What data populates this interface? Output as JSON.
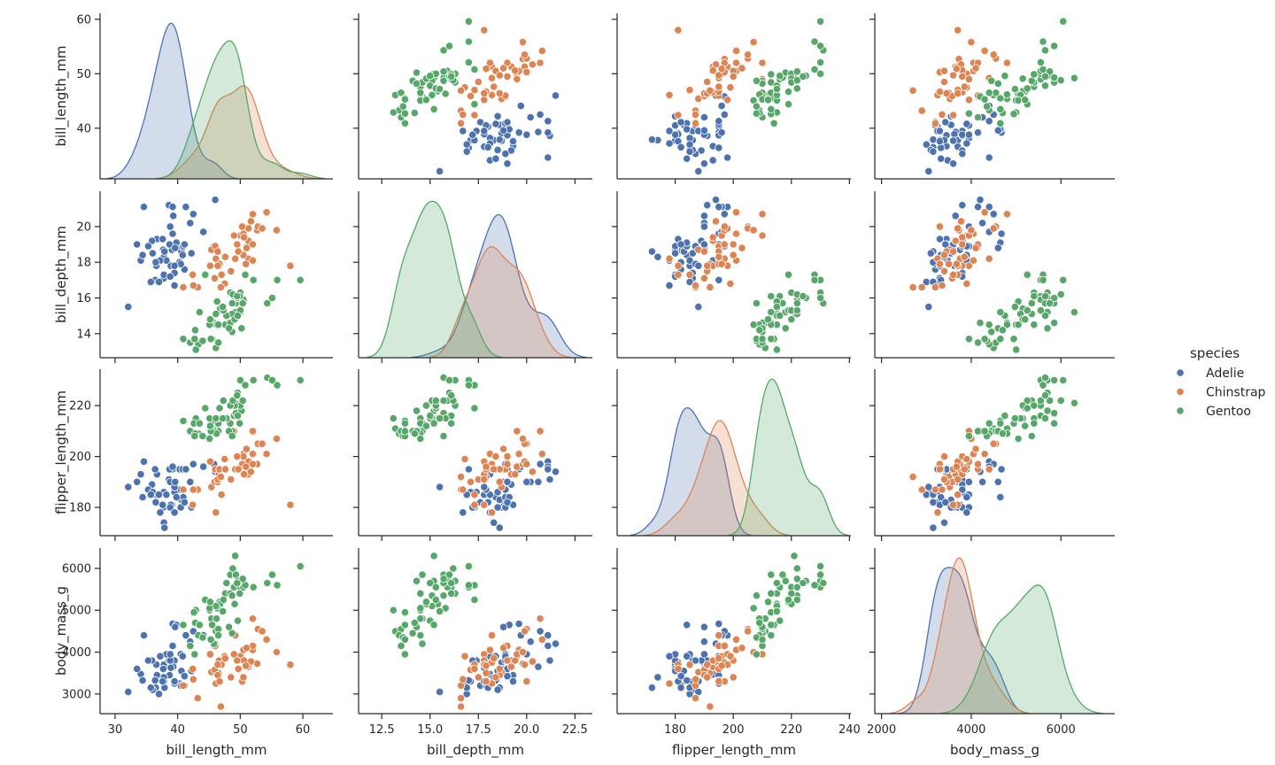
{
  "chart_data": {
    "type": "scatter",
    "subtype": "pairplot",
    "variables": [
      "bill_length_mm",
      "bill_depth_mm",
      "flipper_length_mm",
      "body_mass_g"
    ],
    "diagonal": "kde",
    "grid": false,
    "axes": {
      "bill_length_mm": {
        "lim": [
          27.6,
          64.8
        ],
        "ylim": [
          30.7,
          61.1
        ],
        "xticks": [
          30,
          40,
          50,
          60
        ],
        "xtick_labels": [
          "30",
          "40",
          "50",
          "60"
        ],
        "yticks": [
          40,
          50,
          60
        ],
        "ytick_labels": [
          "40",
          "50",
          "60"
        ]
      },
      "bill_depth_mm": {
        "lim": [
          11.3,
          23.4
        ],
        "ylim": [
          12.65,
          21.98
        ],
        "xticks": [
          12.5,
          15.0,
          17.5,
          20.0,
          22.5
        ],
        "xtick_labels": [
          "12.5",
          "15.0",
          "17.5",
          "20.0",
          "22.5"
        ],
        "yticks": [
          14,
          16,
          18,
          20
        ],
        "ytick_labels": [
          "14",
          "16",
          "18",
          "20"
        ]
      },
      "flipper_length_mm": {
        "lim": [
          160,
          240.5
        ],
        "ylim": [
          168.9,
          234.3
        ],
        "xticks": [
          180,
          200,
          220,
          240
        ],
        "xtick_labels": [
          "180",
          "200",
          "220",
          "240"
        ],
        "yticks": [
          180,
          200,
          220
        ],
        "ytick_labels": [
          "180",
          "200",
          "220"
        ]
      },
      "body_mass_g": {
        "lim": [
          1850,
          7200
        ],
        "ylim": [
          2530,
          6486
        ],
        "xticks": [
          2000,
          4000,
          6000
        ],
        "xtick_labels": [
          "2000",
          "4000",
          "6000"
        ],
        "yticks": [
          3000,
          4000,
          5000,
          6000
        ],
        "ytick_labels": [
          "3000",
          "4000",
          "5000",
          "6000"
        ]
      }
    },
    "legend": {
      "title": "species",
      "placement": "right"
    },
    "series": [
      {
        "name": "Adelie",
        "color": "#4c72b0",
        "points": [
          [
            39.1,
            18.7,
            181,
            3750
          ],
          [
            39.5,
            17.4,
            186,
            3800
          ],
          [
            40.3,
            18.0,
            195,
            3250
          ],
          [
            36.7,
            19.3,
            193,
            3450
          ],
          [
            39.3,
            20.6,
            190,
            3650
          ],
          [
            38.9,
            17.8,
            181,
            3625
          ],
          [
            39.2,
            19.6,
            195,
            4675
          ],
          [
            34.1,
            18.1,
            193,
            3475
          ],
          [
            42.0,
            20.2,
            190,
            4250
          ],
          [
            37.8,
            17.1,
            186,
            3300
          ],
          [
            37.8,
            17.3,
            180,
            3700
          ],
          [
            41.1,
            17.6,
            182,
            3200
          ],
          [
            38.6,
            21.2,
            191,
            3800
          ],
          [
            34.6,
            21.1,
            198,
            4400
          ],
          [
            36.6,
            17.8,
            185,
            3700
          ],
          [
            38.7,
            19.0,
            195,
            3450
          ],
          [
            42.5,
            20.7,
            197,
            4500
          ],
          [
            34.4,
            18.4,
            184,
            3325
          ],
          [
            46.0,
            21.5,
            194,
            4200
          ],
          [
            37.8,
            18.3,
            174,
            3400
          ],
          [
            37.7,
            18.7,
            180,
            3600
          ],
          [
            35.9,
            19.2,
            189,
            3800
          ],
          [
            38.2,
            18.1,
            185,
            3950
          ],
          [
            38.8,
            17.2,
            180,
            3800
          ],
          [
            35.3,
            18.9,
            187,
            3800
          ],
          [
            40.6,
            18.6,
            183,
            3550
          ],
          [
            40.5,
            17.9,
            187,
            3200
          ],
          [
            37.9,
            18.6,
            172,
            3150
          ],
          [
            40.5,
            18.9,
            180,
            3950
          ],
          [
            39.5,
            16.7,
            178,
            3250
          ],
          [
            37.2,
            18.1,
            178,
            3900
          ],
          [
            39.5,
            17.8,
            188,
            3300
          ],
          [
            40.9,
            18.9,
            184,
            3900
          ],
          [
            36.4,
            17.0,
            195,
            3325
          ],
          [
            39.2,
            21.1,
            196,
            4150
          ],
          [
            38.8,
            20.0,
            190,
            3950
          ],
          [
            42.2,
            18.5,
            180,
            3550
          ],
          [
            37.6,
            19.3,
            181,
            3300
          ],
          [
            39.8,
            19.1,
            184,
            4650
          ],
          [
            36.5,
            18.0,
            182,
            3150
          ],
          [
            40.8,
            18.4,
            195,
            3900
          ],
          [
            36.0,
            18.5,
            186,
            3100
          ],
          [
            44.1,
            19.7,
            196,
            4400
          ],
          [
            37.0,
            16.9,
            185,
            3000
          ],
          [
            39.6,
            18.8,
            190,
            4600
          ],
          [
            41.1,
            19.0,
            182,
            3425
          ],
          [
            32.1,
            15.5,
            188,
            3050
          ],
          [
            35.7,
            16.9,
            185,
            3150
          ],
          [
            41.3,
            21.1,
            195,
            4400
          ],
          [
            45.8,
            18.9,
            197,
            4150
          ],
          [
            33.5,
            19.0,
            190,
            3600
          ]
        ]
      },
      {
        "name": "Chinstrap",
        "color": "#dd8452",
        "points": [
          [
            46.5,
            17.9,
            192,
            3500
          ],
          [
            50.0,
            19.5,
            196,
            3900
          ],
          [
            51.3,
            19.2,
            193,
            3650
          ],
          [
            45.4,
            18.7,
            188,
            3525
          ],
          [
            52.7,
            19.8,
            197,
            3725
          ],
          [
            45.2,
            17.8,
            198,
            3950
          ],
          [
            46.1,
            18.2,
            178,
            3250
          ],
          [
            51.3,
            18.2,
            197,
            3750
          ],
          [
            46.0,
            18.9,
            195,
            4150
          ],
          [
            51.3,
            19.9,
            198,
            3700
          ],
          [
            46.6,
            17.8,
            193,
            3800
          ],
          [
            51.7,
            20.3,
            194,
            3775
          ],
          [
            47.0,
            17.3,
            185,
            3700
          ],
          [
            52.0,
            18.1,
            201,
            4050
          ],
          [
            45.9,
            17.1,
            190,
            3575
          ],
          [
            50.5,
            19.6,
            201,
            4050
          ],
          [
            50.3,
            20.0,
            197,
            3300
          ],
          [
            58.0,
            17.8,
            181,
            3700
          ],
          [
            46.4,
            18.6,
            190,
            3450
          ],
          [
            49.2,
            18.2,
            195,
            4400
          ],
          [
            42.4,
            17.3,
            181,
            3600
          ],
          [
            48.5,
            17.5,
            191,
            3400
          ],
          [
            43.2,
            16.6,
            187,
            2900
          ],
          [
            50.6,
            19.4,
            193,
            3800
          ],
          [
            46.7,
            17.9,
            195,
            3300
          ],
          [
            52.0,
            19.0,
            197,
            4150
          ],
          [
            50.5,
            18.4,
            200,
            3400
          ],
          [
            49.5,
            19.0,
            200,
            3800
          ],
          [
            46.4,
            17.8,
            191,
            3700
          ],
          [
            52.8,
            20.0,
            205,
            4550
          ],
          [
            40.9,
            16.6,
            187,
            3200
          ],
          [
            54.2,
            20.8,
            201,
            4300
          ],
          [
            42.5,
            16.7,
            187,
            3350
          ],
          [
            51.0,
            18.8,
            203,
            4100
          ],
          [
            49.7,
            18.6,
            195,
            3600
          ],
          [
            47.5,
            16.8,
            199,
            3900
          ],
          [
            47.6,
            18.3,
            195,
            3850
          ],
          [
            52.0,
            20.7,
            210,
            4800
          ],
          [
            46.9,
            16.6,
            192,
            2700
          ],
          [
            53.5,
            19.9,
            205,
            4500
          ],
          [
            49.0,
            19.5,
            210,
            3950
          ],
          [
            55.8,
            19.8,
            207,
            4000
          ],
          [
            50.9,
            17.9,
            196,
            3675
          ]
        ]
      },
      {
        "name": "Gentoo",
        "color": "#55a868",
        "points": [
          [
            46.1,
            13.2,
            211,
            4500
          ],
          [
            50.0,
            16.3,
            230,
            5700
          ],
          [
            48.7,
            14.1,
            210,
            4450
          ],
          [
            50.0,
            15.2,
            218,
            5700
          ],
          [
            47.6,
            14.5,
            215,
            5400
          ],
          [
            46.5,
            13.5,
            210,
            4550
          ],
          [
            45.4,
            14.6,
            211,
            4800
          ],
          [
            46.7,
            15.3,
            219,
            5200
          ],
          [
            43.3,
            13.4,
            209,
            4400
          ],
          [
            46.8,
            15.4,
            215,
            5150
          ],
          [
            40.9,
            13.7,
            214,
            4650
          ],
          [
            49.0,
            16.1,
            216,
            5550
          ],
          [
            45.5,
            13.7,
            214,
            4650
          ],
          [
            48.4,
            14.6,
            213,
            5850
          ],
          [
            45.8,
            14.6,
            210,
            4200
          ],
          [
            49.3,
            15.7,
            217,
            5850
          ],
          [
            42.0,
            13.5,
            210,
            4150
          ],
          [
            49.2,
            15.2,
            221,
            6300
          ],
          [
            46.2,
            14.5,
            209,
            4800
          ],
          [
            48.7,
            15.1,
            222,
            5350
          ],
          [
            50.2,
            14.3,
            218,
            5700
          ],
          [
            45.1,
            14.5,
            215,
            5000
          ],
          [
            46.5,
            14.5,
            213,
            4400
          ],
          [
            46.3,
            15.8,
            215,
            5050
          ],
          [
            42.9,
            13.1,
            215,
            5000
          ],
          [
            46.1,
            15.1,
            215,
            5100
          ],
          [
            47.8,
            15.0,
            215,
            5650
          ],
          [
            48.2,
            14.3,
            210,
            4600
          ],
          [
            50.0,
            15.3,
            220,
            5550
          ],
          [
            47.3,
            15.3,
            222,
            5250
          ],
          [
            42.8,
            14.2,
            209,
            4700
          ],
          [
            45.1,
            14.5,
            207,
            5050
          ],
          [
            59.6,
            17.0,
            230,
            6050
          ],
          [
            49.1,
            14.8,
            220,
            5150
          ],
          [
            48.4,
            16.3,
            220,
            5400
          ],
          [
            42.6,
            13.7,
            213,
            4950
          ],
          [
            44.4,
            17.3,
            219,
            5250
          ],
          [
            44.0,
            13.6,
            208,
            4350
          ],
          [
            48.7,
            15.7,
            208,
            5350
          ],
          [
            42.7,
            13.7,
            208,
            3950
          ],
          [
            49.6,
            16.0,
            225,
            5700
          ],
          [
            45.3,
            13.7,
            210,
            4300
          ],
          [
            49.6,
            15.0,
            216,
            4750
          ],
          [
            50.5,
            15.9,
            222,
            5550
          ],
          [
            43.5,
            15.2,
            213,
            4650
          ],
          [
            50.8,
            17.3,
            228,
            5600
          ],
          [
            52.1,
            17.0,
            230,
            5550
          ],
          [
            55.9,
            17.0,
            228,
            5600
          ],
          [
            47.2,
            15.5,
            215,
            4975
          ],
          [
            49.9,
            16.1,
            213,
            5400
          ],
          [
            54.3,
            15.7,
            231,
            5650
          ],
          [
            55.1,
            16.0,
            230,
            5850
          ],
          [
            48.8,
            16.2,
            222,
            6000
          ],
          [
            50.4,
            15.7,
            222,
            5750
          ],
          [
            45.2,
            14.8,
            212,
            5200
          ],
          [
            49.5,
            16.1,
            224,
            5650
          ]
        ]
      }
    ]
  }
}
